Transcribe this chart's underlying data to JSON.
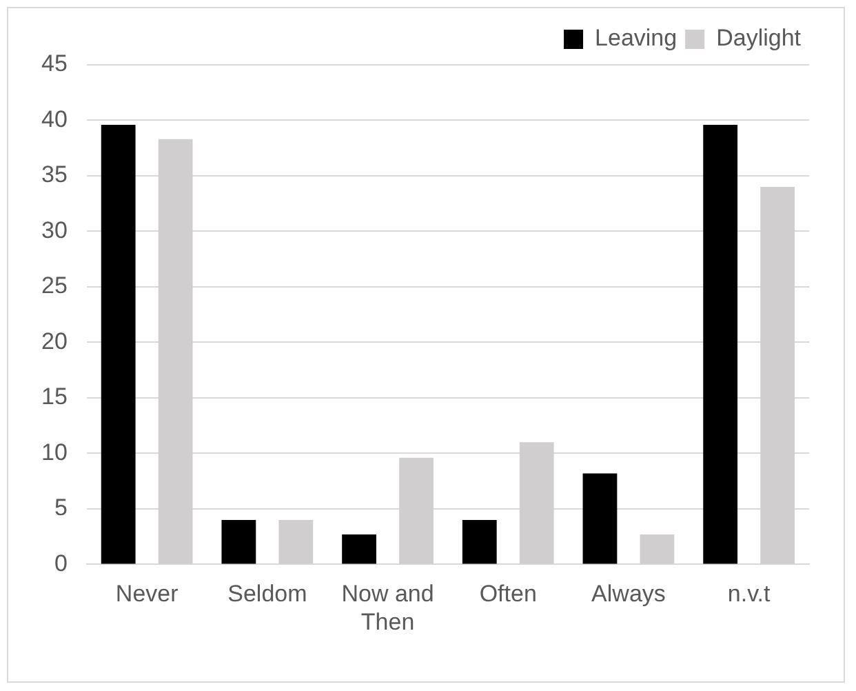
{
  "chart_data": {
    "type": "bar",
    "categories": [
      "Never",
      "Seldom",
      "Now and Then",
      "Often",
      "Always",
      "n.v.t"
    ],
    "series": [
      {
        "name": "Leaving",
        "color": "#000000",
        "values": [
          39.6,
          4.0,
          2.7,
          4.0,
          8.2,
          39.6
        ]
      },
      {
        "name": "Daylight",
        "color": "#d0cece",
        "values": [
          38.3,
          4.0,
          9.6,
          11.0,
          2.7,
          34.0
        ]
      }
    ],
    "ylim": [
      0,
      45
    ],
    "yticks": [
      0,
      5,
      10,
      15,
      20,
      25,
      30,
      35,
      40,
      45
    ],
    "grid": "y",
    "legend": "top right"
  }
}
